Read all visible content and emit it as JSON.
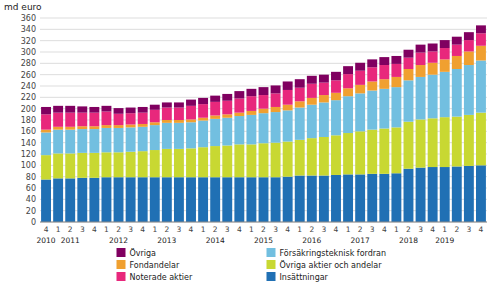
{
  "chart_data": {
    "type": "bar",
    "stacked": true,
    "ylabel": "md euro",
    "categories": [
      "4",
      "1",
      "2",
      "3",
      "4",
      "1",
      "2",
      "3",
      "4",
      "1",
      "2",
      "3",
      "4",
      "1",
      "2",
      "3",
      "4",
      "1",
      "2",
      "3",
      "4",
      "1",
      "2",
      "3",
      "4",
      "1",
      "2",
      "3",
      "4",
      "1",
      "2",
      "3",
      "4",
      "1",
      "2",
      "3",
      "4"
    ],
    "annotations": [
      {
        "text": "2010",
        "x": 0
      },
      {
        "text": "2011",
        "x": 2
      },
      {
        "text": "2012",
        "x": 6
      },
      {
        "text": "2013",
        "x": 10
      },
      {
        "text": "2014",
        "x": 14
      },
      {
        "text": "2015",
        "x": 18
      },
      {
        "text": "2016",
        "x": 22
      },
      {
        "text": "2017",
        "x": 26
      },
      {
        "text": "2018",
        "x": 30
      },
      {
        "text": "2019",
        "x": 33
      }
    ],
    "series": [
      {
        "name": "Insättningar",
        "color": "#2070b4",
        "values": [
          75,
          77,
          77,
          78,
          78,
          79,
          79,
          79,
          79,
          79,
          79,
          79,
          79,
          79,
          79,
          79,
          79,
          79,
          79,
          79,
          80,
          82,
          82,
          82,
          83,
          84,
          84,
          85,
          85,
          86,
          94,
          96,
          97,
          97,
          98,
          99,
          100
        ]
      },
      {
        "name": "Övriga aktier och andelar",
        "color": "#c8d832",
        "values": [
          43,
          44,
          44,
          44,
          44,
          44,
          44,
          45,
          46,
          48,
          50,
          50,
          51,
          53,
          55,
          56,
          58,
          58,
          60,
          61,
          62,
          63,
          66,
          68,
          70,
          73,
          76,
          78,
          80,
          81,
          83,
          85,
          86,
          88,
          88,
          90,
          93
        ]
      },
      {
        "name": "Försäkringsteknisk fordran",
        "color": "#72bfe0",
        "values": [
          40,
          42,
          42,
          42,
          42,
          43,
          43,
          43,
          43,
          44,
          46,
          46,
          46,
          47,
          48,
          49,
          50,
          52,
          53,
          54,
          55,
          57,
          59,
          61,
          62,
          65,
          67,
          69,
          70,
          71,
          73,
          75,
          77,
          80,
          84,
          88,
          92
        ]
      },
      {
        "name": "Fondandelar",
        "color": "#f0a030",
        "values": [
          5,
          5,
          5,
          5,
          5,
          5,
          5,
          5,
          5,
          5,
          5,
          5,
          5,
          5,
          6,
          6,
          6,
          7,
          8,
          9,
          10,
          11,
          12,
          13,
          13,
          14,
          15,
          16,
          17,
          18,
          20,
          21,
          21,
          22,
          23,
          24,
          26
        ]
      },
      {
        "name": "Noterade aktier",
        "color": "#e8287c",
        "values": [
          27,
          25,
          25,
          24,
          24,
          24,
          20,
          20,
          20,
          22,
          22,
          22,
          24,
          24,
          24,
          24,
          25,
          26,
          24,
          24,
          26,
          24,
          25,
          22,
          22,
          25,
          25,
          25,
          25,
          23,
          20,
          22,
          20,
          20,
          20,
          20,
          22
        ]
      },
      {
        "name": "Övriga",
        "color": "#800060",
        "values": [
          13,
          12,
          12,
          11,
          10,
          10,
          10,
          10,
          10,
          9,
          9,
          9,
          11,
          11,
          11,
          12,
          13,
          13,
          14,
          14,
          15,
          15,
          14,
          14,
          15,
          14,
          14,
          14,
          14,
          14,
          14,
          14,
          14,
          14,
          14,
          14,
          14
        ]
      }
    ],
    "ylim": [
      0,
      360
    ],
    "yticks": [
      0,
      20,
      40,
      60,
      80,
      100,
      120,
      140,
      160,
      180,
      200,
      220,
      240,
      260,
      280,
      300,
      320,
      340,
      360
    ],
    "grid": true,
    "legend": "bottom"
  }
}
